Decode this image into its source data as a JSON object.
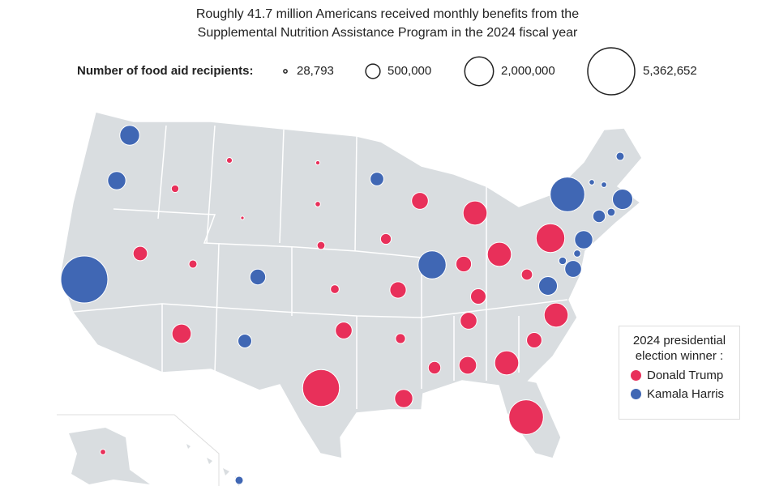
{
  "chart_data": {
    "type": "proportional-symbol-map",
    "title": [
      "Roughly 41.7 million Americans received monthly benefits from the",
      "Supplemental Nutrition Assistance Program in the 2024 fiscal year"
    ],
    "size_legend": {
      "title": "Number of food aid recipients:",
      "values": [
        28793,
        500000,
        2000000,
        5362652
      ],
      "value_labels": [
        "28,793",
        "500,000",
        "2,000,000",
        "5,362,652"
      ]
    },
    "legend_title": [
      "2024 presidential",
      "election winner :"
    ],
    "series": [
      {
        "name": "Donald Trump",
        "color": "#e8305a",
        "values": [
          140000,
          80000,
          28793,
          45000,
          70000,
          150000,
          185000,
          500000,
          160000,
          900000,
          3300000,
          680000,
          280000,
          650000,
          240000,
          800000,
          680000,
          1400000,
          590000,
          1400000,
          580000,
          680000,
          380000,
          750000,
          1400000,
          2900000,
          570000,
          1400000,
          300000,
          2000000,
          75000
        ]
      },
      {
        "name": "Kamala Harris",
        "color": "#4067b4",
        "values": [
          950000,
          800000,
          5362652,
          600000,
          460000,
          450000,
          1900000,
          2900000,
          70000,
          75000,
          160000,
          1000000,
          150000,
          380000,
          800000,
          120000,
          680000,
          140000,
          850000,
          160000
        ]
      }
    ]
  }
}
